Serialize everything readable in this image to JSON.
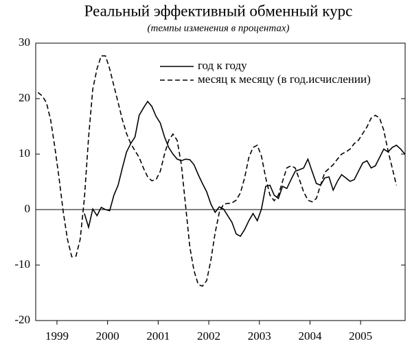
{
  "chart_data": {
    "type": "line",
    "title": "Реальный эффективный обменный курс",
    "subtitle": "(темпы изменения в процентах)",
    "series": [
      {
        "name": "год к году",
        "color": "#000000",
        "dash": false,
        "x": [
          2000.042,
          2000.125,
          2000.208,
          2000.292,
          2000.375,
          2000.458,
          2000.542,
          2000.625,
          2000.708,
          2000.792,
          2000.875,
          2000.958,
          2001.042,
          2001.125,
          2001.208,
          2001.292,
          2001.375,
          2001.458,
          2001.542,
          2001.625,
          2001.708,
          2001.792,
          2001.875,
          2001.958,
          2002.042,
          2002.125,
          2002.208,
          2002.292,
          2002.375,
          2002.458,
          2002.542,
          2002.625,
          2002.708,
          2002.792,
          2002.875,
          2002.958,
          2003.042,
          2003.125,
          2003.208,
          2003.292,
          2003.375,
          2003.458,
          2003.542,
          2003.625,
          2003.708,
          2003.792,
          2003.875,
          2003.958,
          2004.042,
          2004.125,
          2004.208,
          2004.292,
          2004.375,
          2004.458,
          2004.542,
          2004.625,
          2004.708,
          2004.792,
          2004.875,
          2004.958,
          2005.042,
          2005.125,
          2005.208,
          2005.292,
          2005.375,
          2005.458,
          2005.542,
          2005.625,
          2005.708,
          2005.792,
          2005.875,
          2005.958,
          2006.042,
          2006.125,
          2006.208,
          2006.292,
          2006.375
        ],
        "values": [
          -0.7,
          -3.2,
          0.1,
          -1.1,
          0.4,
          0,
          -0.2,
          2.6,
          4.4,
          7.5,
          10.4,
          11.9,
          13.1,
          17,
          18.3,
          19.5,
          18.6,
          16.8,
          15.6,
          13.1,
          11.2,
          10,
          9.1,
          8.8,
          9.1,
          9,
          8.1,
          6.3,
          4.7,
          3.2,
          1,
          -0.5,
          0.5,
          0.1,
          -1.1,
          -2.3,
          -4.4,
          -4.8,
          -3.6,
          -2,
          -0.7,
          -2,
          0.1,
          4.2,
          4.4,
          2.6,
          2,
          4.2,
          3.8,
          5.4,
          6.9,
          7.2,
          7.5,
          9.1,
          6.9,
          4.7,
          4.4,
          5.7,
          5.9,
          3.5,
          5.1,
          6.3,
          5.7,
          5.1,
          5.4,
          6.9,
          8.4,
          8.8,
          7.5,
          7.9,
          9.4,
          10.9,
          10.4,
          11.2,
          11.6,
          10.9,
          10
        ]
      },
      {
        "name": "месяц к месяцу (в год.исчислении)",
        "color": "#000000",
        "dash": true,
        "x": [
          1999.125,
          1999.208,
          1999.292,
          1999.375,
          1999.458,
          1999.542,
          1999.625,
          1999.708,
          1999.792,
          1999.875,
          1999.958,
          2000.042,
          2000.125,
          2000.208,
          2000.292,
          2000.375,
          2000.458,
          2000.542,
          2000.625,
          2000.708,
          2000.792,
          2000.875,
          2000.958,
          2001.042,
          2001.125,
          2001.208,
          2001.292,
          2001.375,
          2001.458,
          2001.542,
          2001.625,
          2001.708,
          2001.792,
          2001.875,
          2001.958,
          2002.042,
          2002.125,
          2002.208,
          2002.292,
          2002.375,
          2002.458,
          2002.542,
          2002.625,
          2002.708,
          2002.792,
          2002.875,
          2002.958,
          2003.042,
          2003.125,
          2003.208,
          2003.292,
          2003.375,
          2003.458,
          2003.542,
          2003.625,
          2003.708,
          2003.792,
          2003.875,
          2003.958,
          2004.042,
          2004.125,
          2004.208,
          2004.292,
          2004.375,
          2004.458,
          2004.542,
          2004.625,
          2004.708,
          2004.792,
          2004.875,
          2004.958,
          2005.042,
          2005.125,
          2005.208,
          2005.292,
          2005.375,
          2005.458,
          2005.542,
          2005.625,
          2005.708,
          2005.792,
          2005.875,
          2005.958,
          2006.042,
          2006.125,
          2006.208
        ],
        "values": [
          21.1,
          20.5,
          19.3,
          16.2,
          11.2,
          5.7,
          -0.5,
          -5.4,
          -8.5,
          -8.4,
          -5.4,
          2,
          13,
          21.7,
          25.4,
          27.7,
          27.7,
          25.4,
          22.3,
          19.3,
          16.2,
          13.7,
          11.9,
          10.6,
          9.4,
          7.5,
          5.9,
          5.2,
          5.4,
          6.9,
          10,
          12.5,
          13.6,
          12.5,
          8.1,
          0.7,
          -6.7,
          -11,
          -13.5,
          -13.8,
          -12.8,
          -9.1,
          -4.2,
          -0.5,
          1,
          1.1,
          1.2,
          1.7,
          3,
          5.7,
          9.4,
          11.2,
          11.6,
          9.6,
          5.7,
          2.6,
          1.6,
          2.6,
          5.1,
          7.5,
          7.9,
          7.5,
          5.4,
          3.2,
          1.7,
          1.4,
          2,
          4.4,
          6.7,
          7.4,
          8.1,
          9.1,
          10,
          10.4,
          10.9,
          11.9,
          12.5,
          13.7,
          14.9,
          16.5,
          17,
          16.5,
          14.3,
          10.6,
          7.5,
          4.4
        ]
      }
    ],
    "xlim": [
      1999.08,
      2006.38
    ],
    "xticks": [
      {
        "value": 1999.5,
        "label": "1999"
      },
      {
        "value": 2000.5,
        "label": "2000"
      },
      {
        "value": 2001.5,
        "label": "2001"
      },
      {
        "value": 2002.5,
        "label": "2002"
      },
      {
        "value": 2003.5,
        "label": "2003"
      },
      {
        "value": 2004.5,
        "label": "2004"
      },
      {
        "value": 2005.5,
        "label": "2005"
      }
    ],
    "ylim": [
      -20,
      30
    ],
    "yticks": [
      -20,
      -10,
      0,
      10,
      20,
      30
    ],
    "zero_line": true,
    "legend": "top"
  }
}
